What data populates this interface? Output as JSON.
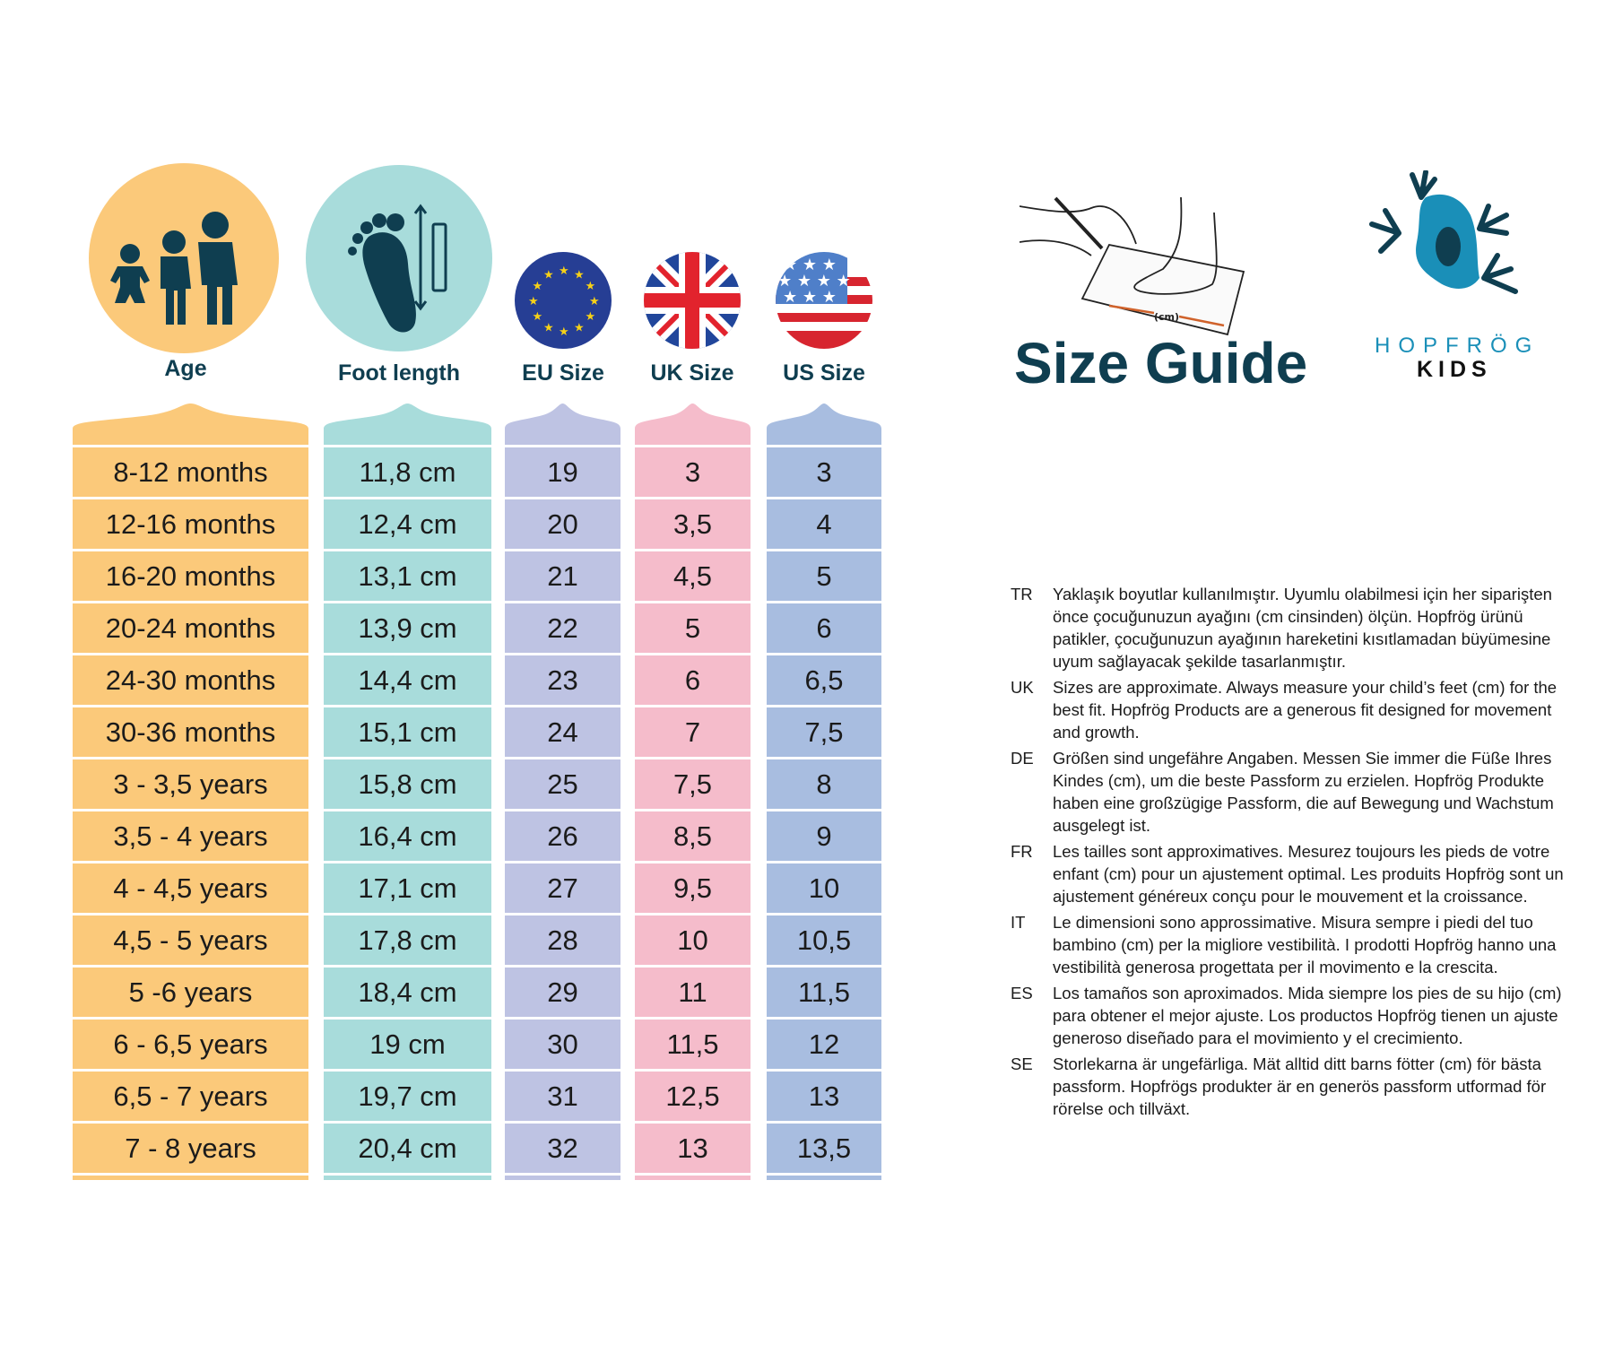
{
  "header": {
    "title": "Size Guide",
    "brand_name": "HOPFRÖG",
    "brand_sub": "KIDS",
    "illustration_unit": "(cm)"
  },
  "columns": [
    {
      "key": "age",
      "label": "Age",
      "icon": "children-growth-icon",
      "color": "#fbc97a"
    },
    {
      "key": "foot",
      "label": "Foot length",
      "icon": "footprint-ruler-icon",
      "color": "#a8dcdb"
    },
    {
      "key": "eu",
      "label": "EU Size",
      "icon": "eu-flag-icon",
      "color": "#bec3e3"
    },
    {
      "key": "uk",
      "label": "UK Size",
      "icon": "uk-flag-icon",
      "color": "#f5bccb"
    },
    {
      "key": "us",
      "label": "US Size",
      "icon": "us-flag-icon",
      "color": "#a8bde0"
    }
  ],
  "rows": {
    "age": [
      "8-12 months",
      "12-16 months",
      "16-20 months",
      "20-24 months",
      "24-30 months",
      "30-36 months",
      "3 - 3,5 years",
      "3,5 - 4 years",
      "4 - 4,5 years",
      "4,5 - 5 years",
      "5 -6 years",
      "6 - 6,5 years",
      "6,5 - 7 years",
      "7 - 8 years"
    ],
    "foot": [
      "11,8 cm",
      "12,4 cm",
      "13,1 cm",
      "13,9 cm",
      "14,4 cm",
      "15,1 cm",
      "15,8 cm",
      "16,4 cm",
      "17,1 cm",
      "17,8 cm",
      "18,4 cm",
      "19 cm",
      "19,7 cm",
      "20,4 cm"
    ],
    "eu": [
      "19",
      "20",
      "21",
      "22",
      "23",
      "24",
      "25",
      "26",
      "27",
      "28",
      "29",
      "30",
      "31",
      "32"
    ],
    "uk": [
      "3",
      "3,5",
      "4,5",
      "5",
      "6",
      "7",
      "7,5",
      "8,5",
      "9,5",
      "10",
      "11",
      "11,5",
      "12,5",
      "13"
    ],
    "us": [
      "3",
      "4",
      "5",
      "6",
      "6,5",
      "7,5",
      "8",
      "9",
      "10",
      "10,5",
      "11,5",
      "12",
      "13",
      "13,5"
    ]
  },
  "notes": [
    {
      "code": "TR",
      "text": "Yaklaşık boyutlar kullanılmıştır. Uyumlu olabilmesi için her siparişten önce çocuğunuzun ayağını (cm cinsinden) ölçün. Hopfrög ürünü patikler, çocuğunuzun ayağının hareketini kısıtlamadan büyümesine uyum sağlayacak şekilde tasarlanmıştır."
    },
    {
      "code": "UK",
      "text": "Sizes are approximate. Always measure your child’s feet (cm) for the best fit.  Hopfrög Products are a generous fit designed for movement and growth."
    },
    {
      "code": "DE",
      "text": "Größen sind ungefähre Angaben. Messen Sie immer die Füße Ihres Kindes (cm), um die beste Passform zu erzielen. Hopfrög Produkte haben eine großzügige Passform, die auf Bewegung und Wachstum ausgelegt ist."
    },
    {
      "code": "FR",
      "text": "Les tailles sont approximatives. Mesurez toujours les pieds de votre enfant (cm) pour un ajustement optimal. Les produits Hopfrög sont un ajustement généreux conçu pour le mouvement et la croissance."
    },
    {
      "code": "IT",
      "text": "Le dimensioni sono approssimative. Misura sempre i piedi del tuo bambino (cm) per la migliore vestibilità. I prodotti Hopfrög hanno una vestibilità generosa progettata per il movimento e la crescita."
    },
    {
      "code": "ES",
      "text": "Los tamaños son aproximados. Mida siempre los pies de su hijo (cm) para obtener el mejor ajuste. Los productos Hopfrög tienen un ajuste generoso diseñado para el movimiento y el crecimiento."
    },
    {
      "code": "SE",
      "text": "Storlekarna är ungefärliga. Mät alltid ditt barns fötter (cm) för bästa passform. Hopfrögs produkter är en generös passform utformad för rörelse och tillväxt."
    }
  ],
  "colors": {
    "navy": "#0f3e50",
    "frog_blue": "#1a8fb8"
  }
}
